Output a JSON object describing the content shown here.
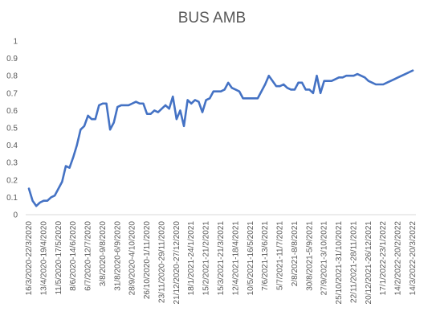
{
  "chart_data": {
    "type": "line",
    "title": "BUS AMB",
    "xlabel": "",
    "ylabel": "",
    "ylim": [
      0,
      1
    ],
    "y_ticks": [
      "0",
      "0.1",
      "0.2",
      "0.3",
      "0.4",
      "0.5",
      "0.6",
      "0.7",
      "0.8",
      "0.9",
      "1"
    ],
    "grid": false,
    "legend": "none",
    "line_color": "#4472c4",
    "x_tick_labels": [
      "16/3/2020-22/3/2020",
      "13/4/2020-19/4/2020",
      "11/5/2020-17/5/2020",
      "8/6/2020-14/6/2020",
      "6/7/2020-12/7/2020",
      "3/8/2020-9/8/2020",
      "31/8/2020-6/9/2020",
      "28/9/2020-4/10/2020",
      "26/10/2020-1/11/2020",
      "23/11/2020-29/11/2020",
      "21/12/2020-27/12/2020",
      "18/1/2021-24/1/2021",
      "15/2/2021-21/2/2021",
      "15/3/2021-21/3/2021",
      "12/4/2021-18/4/2021",
      "10/5/2021-16/5/2021",
      "7/6/2021-13/6/2021",
      "5/7/2021-11/7/2021",
      "2/8/2021-8/8/2021",
      "30/8/2021-5/9/2021",
      "27/9/2021-3/10/2021",
      "25/10/2021-31/10/2021",
      "22/11/2021-28/11/2021",
      "20/12/2021-26/12/2021",
      "17/1/2022-23/1/2022",
      "14/2/2022-20/2/2022",
      "14/3/2022-20/3/2022"
    ],
    "tick_every": 4,
    "values": [
      0.15,
      0.08,
      0.05,
      0.07,
      0.08,
      0.08,
      0.1,
      0.11,
      0.15,
      0.19,
      0.28,
      0.27,
      0.33,
      0.4,
      0.49,
      0.51,
      0.57,
      0.55,
      0.55,
      0.63,
      0.64,
      0.64,
      0.49,
      0.53,
      0.62,
      0.63,
      0.63,
      0.63,
      0.64,
      0.65,
      0.64,
      0.64,
      0.58,
      0.58,
      0.6,
      0.59,
      0.61,
      0.63,
      0.61,
      0.68,
      0.55,
      0.6,
      0.51,
      0.66,
      0.64,
      0.66,
      0.65,
      0.59,
      0.66,
      0.67,
      0.71,
      0.71,
      0.71,
      0.72,
      0.76,
      0.73,
      0.72,
      0.71,
      0.67,
      0.67,
      0.67,
      0.67,
      0.67,
      0.71,
      0.75,
      0.8,
      0.77,
      0.74,
      0.74,
      0.75,
      0.73,
      0.72,
      0.72,
      0.76,
      0.76,
      0.72,
      0.72,
      0.7,
      0.8,
      0.7,
      0.77,
      0.77,
      0.77,
      0.78,
      0.79,
      0.79,
      0.8,
      0.8,
      0.8,
      0.81,
      0.8,
      0.79,
      0.77,
      0.76,
      0.75,
      0.75,
      0.75,
      0.76,
      0.77,
      0.78,
      0.79,
      0.8,
      0.81,
      0.82,
      0.83
    ]
  }
}
